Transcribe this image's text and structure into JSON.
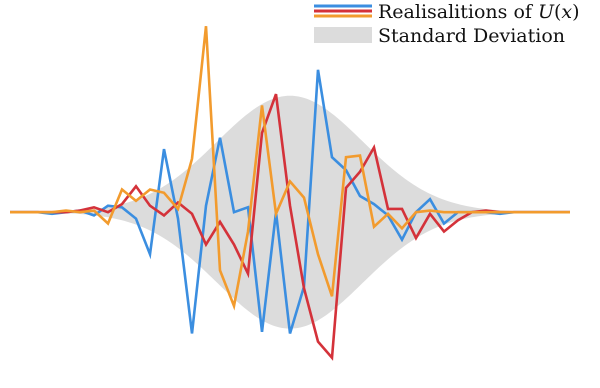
{
  "chart_data": {
    "type": "line",
    "title": "",
    "xlabel": "",
    "ylabel": "",
    "axes_visible": false,
    "grid": false,
    "legend_placement": "top-right",
    "xlim": [
      0,
      40
    ],
    "ylim": [
      -1.05,
      1.25
    ],
    "x": [
      0,
      1,
      2,
      3,
      4,
      5,
      6,
      7,
      8,
      9,
      10,
      11,
      12,
      13,
      14,
      15,
      16,
      17,
      18,
      19,
      20,
      21,
      22,
      23,
      24,
      25,
      26,
      27,
      28,
      29,
      30,
      31,
      32,
      33,
      34,
      35,
      36,
      37,
      38,
      39,
      40
    ],
    "series": [
      {
        "name": "Realisalitions of U(x)",
        "color": "#3b8ee0",
        "values": [
          0.0,
          0.0,
          0.0,
          -0.01,
          0.0,
          0.01,
          -0.02,
          0.04,
          0.03,
          -0.04,
          -0.26,
          0.39,
          -0.04,
          -0.75,
          0.04,
          0.46,
          0.0,
          0.03,
          -0.74,
          0.0,
          -0.75,
          -0.46,
          0.88,
          0.34,
          0.26,
          0.1,
          0.05,
          -0.02,
          -0.17,
          0.0,
          0.08,
          -0.07,
          0.0,
          0.0,
          0.0,
          -0.01,
          0.0,
          0.0,
          0.0,
          0.0,
          0.0
        ]
      },
      {
        "name": "",
        "color": "#d4323a",
        "values": [
          0.0,
          0.0,
          0.0,
          0.0,
          0.0,
          0.01,
          0.03,
          0.0,
          0.05,
          0.16,
          0.04,
          -0.02,
          0.06,
          -0.01,
          -0.2,
          -0.06,
          -0.2,
          -0.38,
          0.49,
          0.73,
          0.04,
          -0.47,
          -0.8,
          -0.9,
          0.15,
          0.25,
          0.4,
          0.02,
          0.02,
          -0.16,
          -0.01,
          -0.12,
          -0.05,
          0.0,
          0.01,
          0.0,
          0.0,
          0.0,
          0.0,
          0.0,
          0.0
        ]
      },
      {
        "name": "",
        "color": "#f29b2e",
        "values": [
          0.0,
          0.0,
          0.0,
          0.0,
          0.01,
          0.0,
          0.01,
          -0.07,
          0.14,
          0.07,
          0.14,
          0.12,
          0.02,
          0.33,
          1.15,
          -0.36,
          -0.58,
          -0.12,
          0.66,
          -0.01,
          0.19,
          0.09,
          -0.26,
          -0.52,
          0.34,
          0.35,
          -0.09,
          -0.01,
          -0.1,
          0.0,
          0.01,
          0.0,
          0.0,
          0.0,
          0.0,
          0.0,
          0.0,
          0.0,
          0.0,
          0.0,
          0.0
        ]
      }
    ],
    "band": {
      "name": "Standard Deviation",
      "color": "#dcdcdc",
      "center_x": 20,
      "width": 5.2,
      "amplitude": 0.72
    }
  }
}
